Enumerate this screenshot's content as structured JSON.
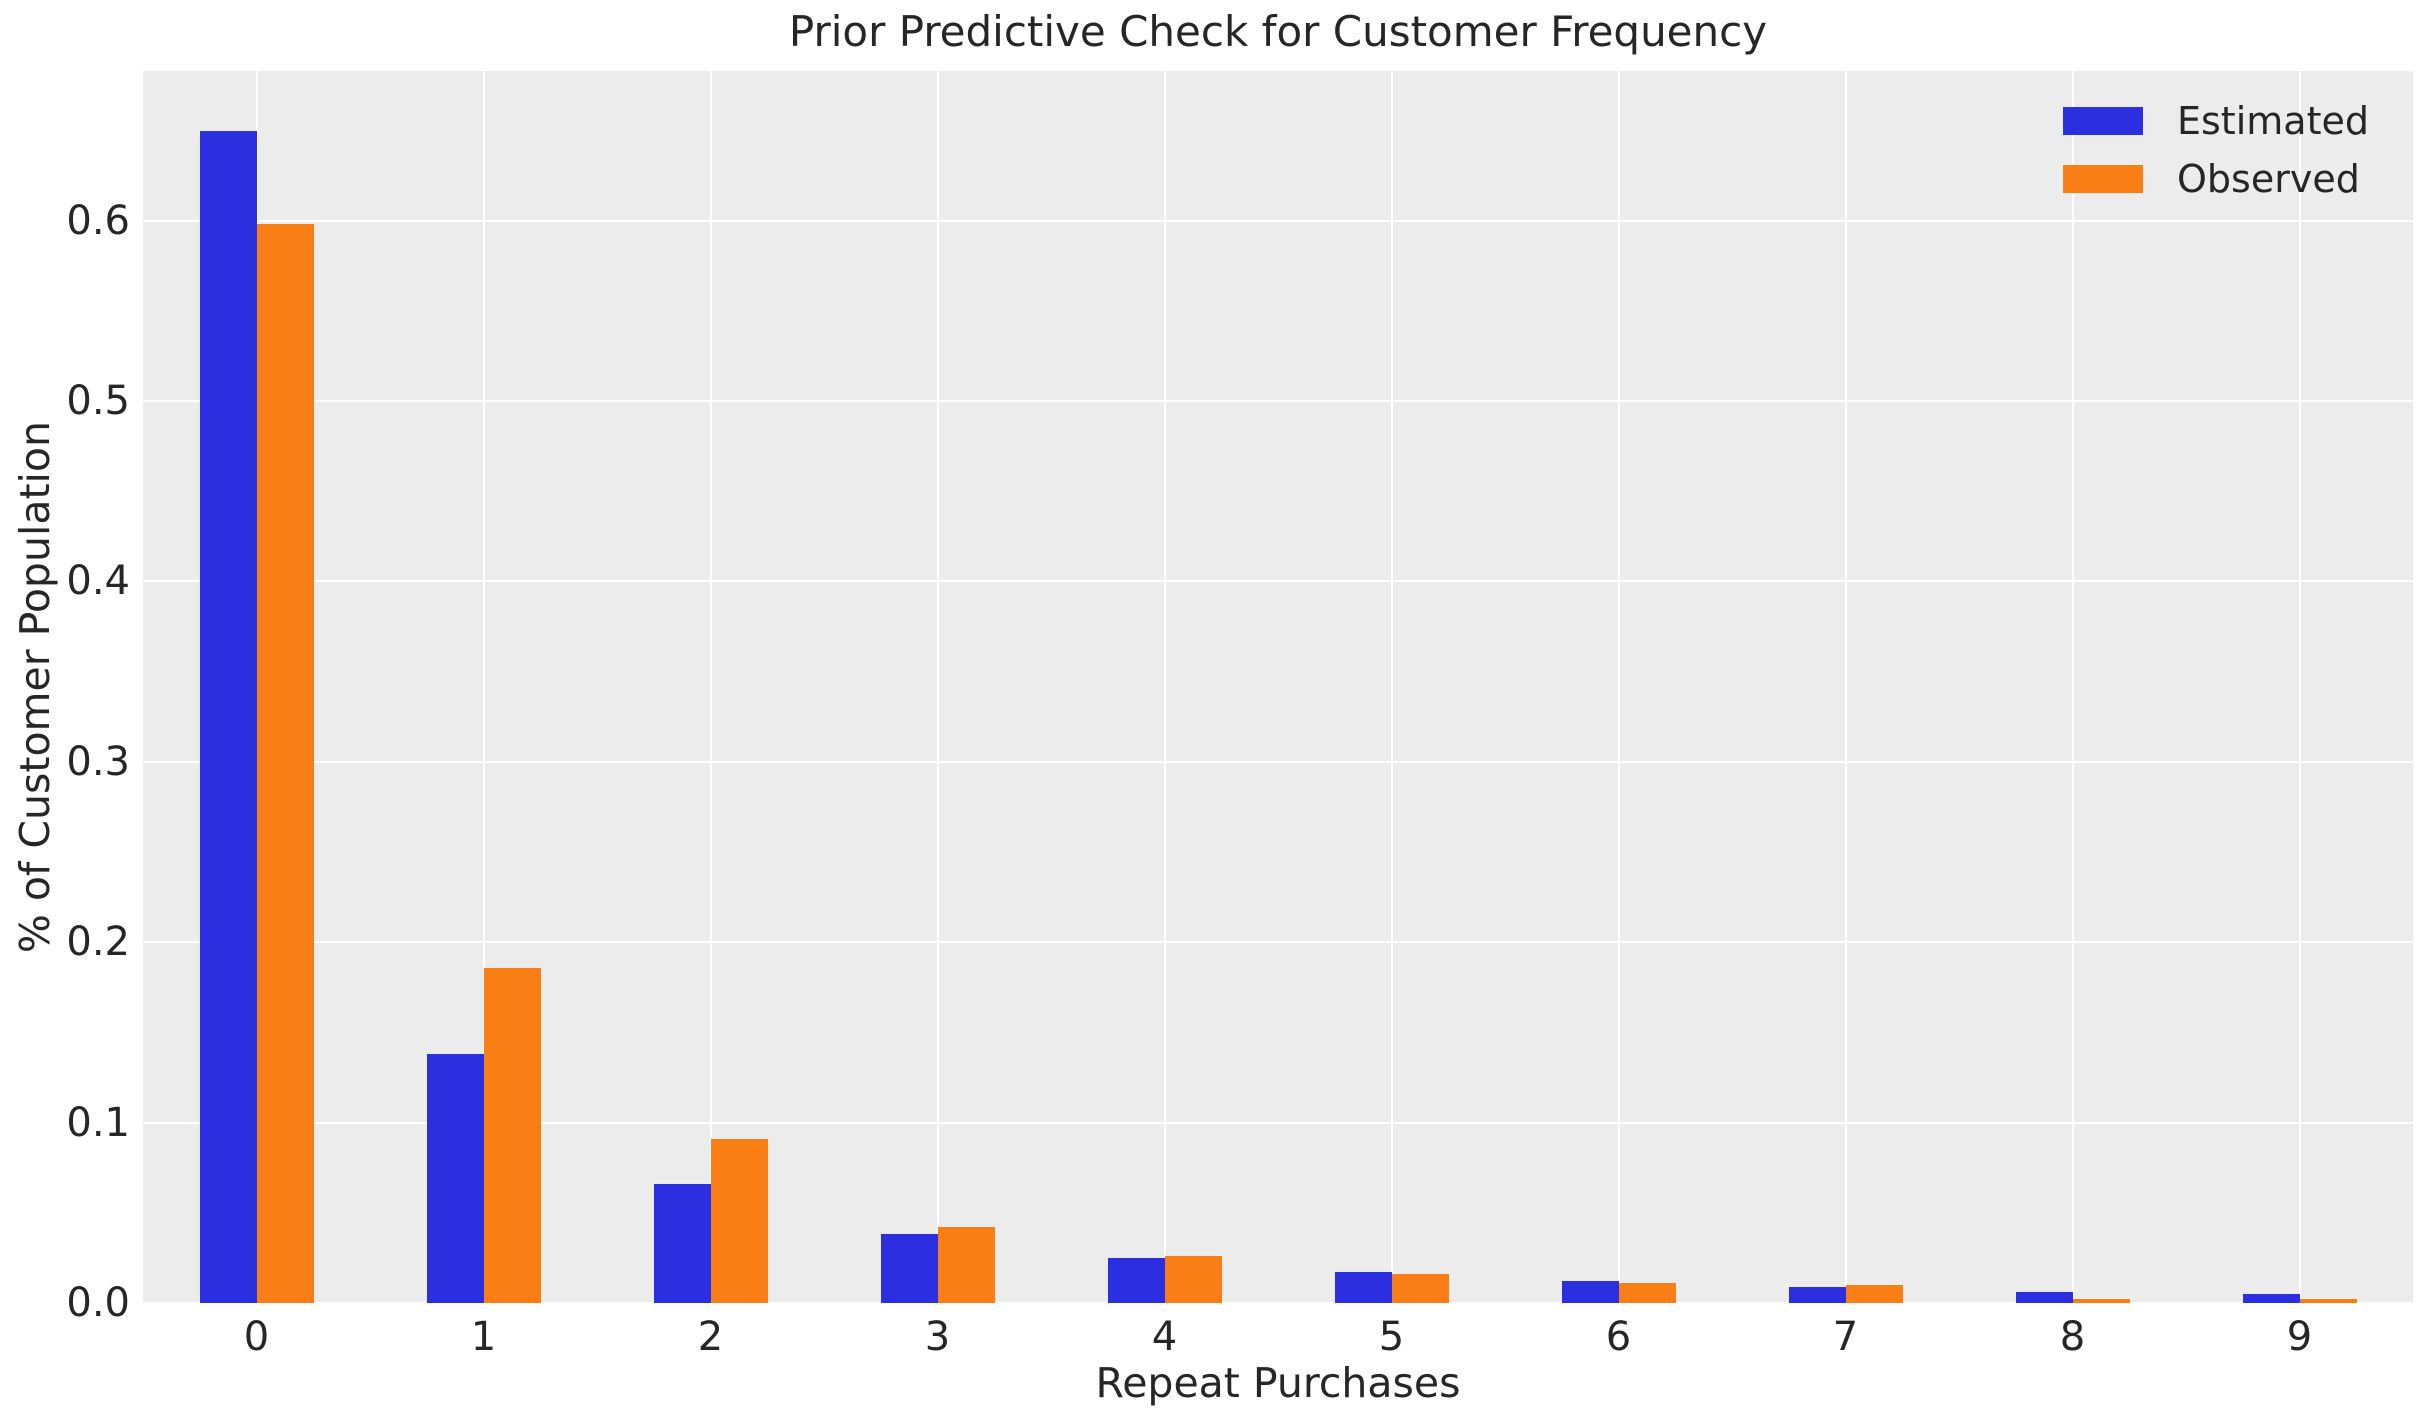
{
  "chart_data": {
    "type": "bar",
    "title": "Prior Predictive Check for Customer Frequency",
    "xlabel": "Repeat Purchases",
    "ylabel": "% of Customer Population",
    "categories": [
      "0",
      "1",
      "2",
      "3",
      "4",
      "5",
      "6",
      "7",
      "8",
      "9"
    ],
    "series": [
      {
        "name": "Estimated",
        "color": "#2B2FE0",
        "values": [
          0.65,
          0.138,
          0.066,
          0.038,
          0.025,
          0.017,
          0.012,
          0.009,
          0.006,
          0.005
        ]
      },
      {
        "name": "Observed",
        "color": "#F97E16",
        "values": [
          0.598,
          0.186,
          0.091,
          0.042,
          0.026,
          0.016,
          0.011,
          0.01,
          0.002,
          0.002
        ]
      }
    ],
    "yticks": [
      0.0,
      0.1,
      0.2,
      0.3,
      0.4,
      0.5,
      0.6
    ],
    "ytick_labels": [
      "0.0",
      "0.1",
      "0.2",
      "0.3",
      "0.4",
      "0.5",
      "0.6"
    ],
    "ylim": [
      0,
      0.683
    ],
    "grid": true,
    "legend_position": "upper right",
    "plot_background": "#ECECEC",
    "gridline_color": "#FFFFFF",
    "text_color": "#262626"
  }
}
